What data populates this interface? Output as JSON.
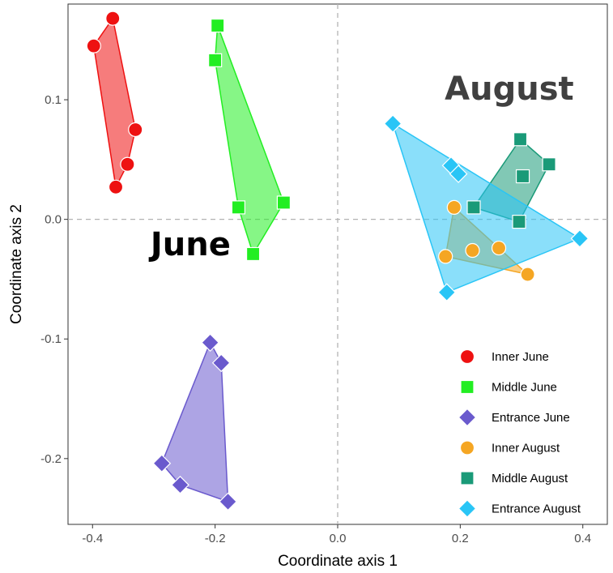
{
  "chart_data": {
    "type": "scatter",
    "title": "",
    "xlabel": "Coordinate axis 1",
    "ylabel": "Coordinate axis 2",
    "xlim": [
      -0.44,
      0.44
    ],
    "ylim": [
      -0.255,
      0.18
    ],
    "x_ticks": [
      -0.4,
      -0.2,
      0.0,
      0.2,
      0.4
    ],
    "x_tick_labels": [
      "-0.4",
      "-0.2",
      "0.0",
      "0.2",
      "0.4"
    ],
    "y_ticks": [
      -0.2,
      -0.1,
      0.0,
      0.1
    ],
    "y_tick_labels": [
      "-0.2",
      "-0.1",
      "0.0",
      "0.1"
    ],
    "grid": false,
    "reference_lines": {
      "x": 0.0,
      "y": 0.0,
      "style": "dashed"
    },
    "hulls": true,
    "legend_position": "bottom-right",
    "annotations": [
      {
        "text": "June",
        "x": -0.24,
        "y": -0.03,
        "color": "#000000"
      },
      {
        "text": "August",
        "x": 0.28,
        "y": 0.1,
        "color": "#404040"
      }
    ],
    "series": [
      {
        "name": "Inner June",
        "color": "#ee1111",
        "marker": "circle",
        "points": [
          {
            "x": -0.367,
            "y": 0.168
          },
          {
            "x": -0.398,
            "y": 0.145
          },
          {
            "x": -0.33,
            "y": 0.075
          },
          {
            "x": -0.343,
            "y": 0.046
          },
          {
            "x": -0.362,
            "y": 0.027
          }
        ]
      },
      {
        "name": "Middle June",
        "color": "#22ee22",
        "marker": "square",
        "points": [
          {
            "x": -0.196,
            "y": 0.162
          },
          {
            "x": -0.2,
            "y": 0.133
          },
          {
            "x": -0.088,
            "y": 0.014
          },
          {
            "x": -0.162,
            "y": 0.01
          },
          {
            "x": -0.138,
            "y": -0.029
          }
        ]
      },
      {
        "name": "Entrance June",
        "color": "#6a5acd",
        "marker": "diamond",
        "points": [
          {
            "x": -0.208,
            "y": -0.103
          },
          {
            "x": -0.19,
            "y": -0.12
          },
          {
            "x": -0.287,
            "y": -0.204
          },
          {
            "x": -0.257,
            "y": -0.222
          },
          {
            "x": -0.179,
            "y": -0.236
          }
        ]
      },
      {
        "name": "Inner August",
        "color": "#f5a623",
        "marker": "circle",
        "points": [
          {
            "x": 0.19,
            "y": 0.01
          },
          {
            "x": 0.176,
            "y": -0.031
          },
          {
            "x": 0.22,
            "y": -0.026
          },
          {
            "x": 0.263,
            "y": -0.024
          },
          {
            "x": 0.31,
            "y": -0.046
          }
        ]
      },
      {
        "name": "Middle August",
        "color": "#1a9a78",
        "marker": "square",
        "points": [
          {
            "x": 0.298,
            "y": 0.067
          },
          {
            "x": 0.345,
            "y": 0.046
          },
          {
            "x": 0.302,
            "y": 0.036
          },
          {
            "x": 0.222,
            "y": 0.01
          },
          {
            "x": 0.296,
            "y": -0.002
          }
        ]
      },
      {
        "name": "Entrance August",
        "color": "#29c5f6",
        "marker": "diamond",
        "points": [
          {
            "x": 0.09,
            "y": 0.08
          },
          {
            "x": 0.185,
            "y": 0.045
          },
          {
            "x": 0.197,
            "y": 0.038
          },
          {
            "x": 0.395,
            "y": -0.016
          },
          {
            "x": 0.178,
            "y": -0.061
          }
        ]
      }
    ]
  }
}
